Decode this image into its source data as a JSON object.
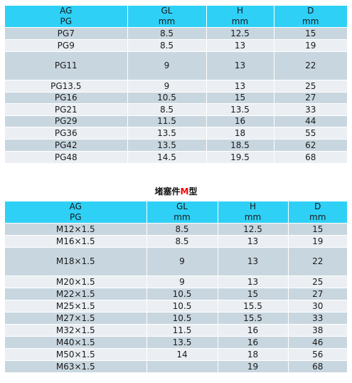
{
  "table_pg": {
    "header": [
      [
        "AG",
        "PG"
      ],
      [
        "GL",
        "mm"
      ],
      [
        "H",
        "mm"
      ],
      [
        "D",
        "mm"
      ]
    ],
    "rows": [
      [
        "PG7",
        "8.5",
        "12.5",
        "15"
      ],
      [
        "PG9",
        "8.5",
        "13",
        "19"
      ],
      [
        "PG11",
        "9",
        "13",
        "22"
      ],
      [
        "PG13.5",
        "9",
        "13",
        "25"
      ],
      [
        "PG16",
        "10.5",
        "15",
        "27"
      ],
      [
        "PG21",
        "8.5",
        "13.5",
        "33"
      ],
      [
        "PG29",
        "11.5",
        "16",
        "44"
      ],
      [
        "PG36",
        "13.5",
        "18",
        "55"
      ],
      [
        "PG42",
        "13.5",
        "18.5",
        "62"
      ],
      [
        "PG48",
        "14.5",
        "19.5",
        "68"
      ]
    ]
  },
  "title_m": {
    "prefix": "堵塞件",
    "accent": "M",
    "suffix": "型"
  },
  "table_m": {
    "header": [
      [
        "AG",
        "PG"
      ],
      [
        "GL",
        "mm"
      ],
      [
        "H",
        "mm"
      ],
      [
        "D",
        "mm"
      ]
    ],
    "rows": [
      [
        "M12×1.5",
        "8.5",
        "12.5",
        "15"
      ],
      [
        "M16×1.5",
        "8.5",
        "13",
        "19"
      ],
      [
        "M18×1.5",
        "9",
        "13",
        "22"
      ],
      [
        "M20×1.5",
        "9",
        "13",
        "25"
      ],
      [
        "M22×1.5",
        "10.5",
        "15",
        "27"
      ],
      [
        "M25×1.5",
        "10.5",
        "15.5",
        "30"
      ],
      [
        "M27×1.5",
        "10.5",
        "15.5",
        "33"
      ],
      [
        "M32×1.5",
        "11.5",
        "16",
        "38"
      ],
      [
        "M40×1.5",
        "13.5",
        "16",
        "46"
      ],
      [
        "M50×1.5",
        "14",
        "18",
        "56"
      ],
      [
        "M63×1.5",
        "",
        "19",
        "68"
      ]
    ]
  },
  "colors": {
    "header": "#2fd0f6",
    "row_dark": "#c8d6df",
    "row_light": "#ebeff3",
    "accent": "#ff0000"
  }
}
